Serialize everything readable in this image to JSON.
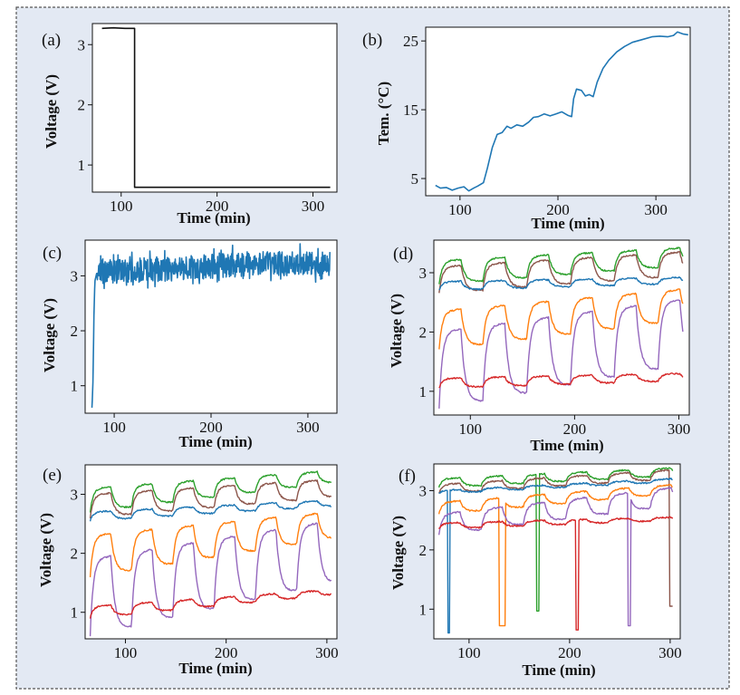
{
  "colors": {
    "background": "#e3e9f3",
    "frame": "#555555",
    "axis": "#111111",
    "black_line": "#111111",
    "blue": "#1f77b4",
    "green": "#2ca02c",
    "brown": "#8c564b",
    "orange": "#ff7f0e",
    "purple": "#9467bd",
    "red": "#d62728"
  },
  "chart_data": [
    {
      "panel_label": "(a)",
      "type": "line",
      "xlabel": "Time (min)",
      "ylabel": "Voltage (V)",
      "xlim": [
        70,
        325
      ],
      "ylim": [
        0.55,
        3.35
      ],
      "xticks": [
        100,
        200,
        300
      ],
      "yticks": [
        1,
        2,
        3
      ],
      "series": [
        {
          "name": "voltage",
          "color": "black_line",
          "points": [
            [
              80,
              3.27
            ],
            [
              92,
              3.28
            ],
            [
              104,
              3.27
            ],
            [
              114,
              3.27
            ],
            [
              114,
              0.63
            ],
            [
              200,
              0.63
            ],
            [
              318,
              0.63
            ]
          ]
        }
      ]
    },
    {
      "panel_label": "(b)",
      "type": "line",
      "xlabel": "Time (min)",
      "ylabel": "Tem. (°C)",
      "xlim": [
        65,
        335
      ],
      "ylim": [
        2.5,
        27
      ],
      "xticks": [
        100,
        200,
        300
      ],
      "yticks": [
        5,
        15,
        25
      ],
      "series": [
        {
          "name": "temperature",
          "color": "blue",
          "points": [
            [
              75,
              4.0
            ],
            [
              80,
              3.6
            ],
            [
              86,
              3.7
            ],
            [
              92,
              3.3
            ],
            [
              98,
              3.6
            ],
            [
              104,
              3.8
            ],
            [
              109,
              3.2
            ],
            [
              114,
              3.6
            ],
            [
              118,
              3.9
            ],
            [
              124,
              4.4
            ],
            [
              128,
              6.5
            ],
            [
              133,
              9.5
            ],
            [
              138,
              11.4
            ],
            [
              143,
              11.7
            ],
            [
              148,
              12.6
            ],
            [
              152,
              12.3
            ],
            [
              158,
              12.8
            ],
            [
              164,
              12.6
            ],
            [
              170,
              13.2
            ],
            [
              175,
              13.9
            ],
            [
              180,
              14.0
            ],
            [
              186,
              14.4
            ],
            [
              192,
              14.1
            ],
            [
              198,
              14.4
            ],
            [
              204,
              14.7
            ],
            [
              210,
              14.2
            ],
            [
              214,
              14.0
            ],
            [
              216,
              16.6
            ],
            [
              219,
              18.0
            ],
            [
              224,
              17.8
            ],
            [
              228,
              17.0
            ],
            [
              232,
              17.2
            ],
            [
              236,
              16.9
            ],
            [
              240,
              19.0
            ],
            [
              246,
              21.0
            ],
            [
              252,
              22.2
            ],
            [
              260,
              23.4
            ],
            [
              268,
              24.2
            ],
            [
              276,
              24.8
            ],
            [
              286,
              25.2
            ],
            [
              296,
              25.6
            ],
            [
              304,
              25.7
            ],
            [
              312,
              25.6
            ],
            [
              318,
              25.8
            ],
            [
              322,
              26.3
            ],
            [
              328,
              26.0
            ],
            [
              333,
              25.9
            ]
          ]
        }
      ]
    },
    {
      "panel_label": "(c)",
      "type": "line",
      "xlabel": "Time (min)",
      "ylabel": "Voltage (V)",
      "xlim": [
        70,
        330
      ],
      "ylim": [
        0.5,
        3.65
      ],
      "xticks": [
        100,
        200,
        300
      ],
      "yticks": [
        1,
        2,
        3
      ],
      "series": [
        {
          "name": "voltage",
          "color": "blue",
          "noise_amplitude": 0.22,
          "points": [
            [
              77,
              0.6
            ],
            [
              78,
              1.0
            ],
            [
              79,
              2.2
            ],
            [
              80,
              2.9
            ],
            [
              82,
              3.05
            ],
            [
              90,
              3.05
            ],
            [
              120,
              3.08
            ],
            [
              160,
              3.1
            ],
            [
              200,
              3.15
            ],
            [
              240,
              3.2
            ],
            [
              280,
              3.2
            ],
            [
              323,
              3.2
            ]
          ]
        }
      ]
    },
    {
      "panel_label": "(d)",
      "type": "line",
      "xlabel": "Time (min)",
      "ylabel": "Voltage (V)",
      "xlim": [
        65,
        310
      ],
      "ylim": [
        0.6,
        3.55
      ],
      "xticks": [
        100,
        200,
        300
      ],
      "yticks": [
        1,
        2,
        3
      ],
      "cycle": {
        "start": 70,
        "end": 304,
        "period": 42,
        "on_fraction": 0.5
      },
      "series": [
        {
          "name": "green",
          "color": "green",
          "base": [
            2.8,
            3.12
          ],
          "peak": [
            3.2,
            3.42
          ]
        },
        {
          "name": "brown",
          "color": "brown",
          "base": [
            2.65,
            2.95
          ],
          "peak": [
            3.1,
            3.35
          ]
        },
        {
          "name": "blue",
          "color": "blue",
          "base": [
            2.7,
            2.82
          ],
          "peak": [
            2.85,
            2.92
          ]
        },
        {
          "name": "orange",
          "color": "orange",
          "base": [
            1.7,
            2.2
          ],
          "peak": [
            2.35,
            2.72
          ]
        },
        {
          "name": "purple",
          "color": "purple",
          "base": [
            0.7,
            1.45
          ],
          "peak": [
            2.0,
            2.55
          ]
        },
        {
          "name": "red",
          "color": "red",
          "base": [
            1.05,
            1.18
          ],
          "peak": [
            1.22,
            1.3
          ]
        }
      ]
    },
    {
      "panel_label": "(e)",
      "type": "line",
      "xlabel": "Time (min)",
      "ylabel": "Voltage (V)",
      "xlim": [
        60,
        310
      ],
      "ylim": [
        0.55,
        3.5
      ],
      "xticks": [
        100,
        200,
        300
      ],
      "yticks": [
        1,
        2,
        3
      ],
      "cycle": {
        "start": 65,
        "end": 305,
        "period": 41,
        "on_fraction": 0.5
      },
      "series": [
        {
          "name": "green",
          "color": "green",
          "base": [
            2.7,
            3.2
          ],
          "peak": [
            3.1,
            3.4
          ]
        },
        {
          "name": "brown",
          "color": "brown",
          "base": [
            2.6,
            2.95
          ],
          "peak": [
            3.0,
            3.25
          ]
        },
        {
          "name": "blue",
          "color": "blue",
          "base": [
            2.55,
            2.8
          ],
          "peak": [
            2.7,
            2.9
          ]
        },
        {
          "name": "orange",
          "color": "orange",
          "base": [
            1.6,
            2.25
          ],
          "peak": [
            2.3,
            2.7
          ]
        },
        {
          "name": "purple",
          "color": "purple",
          "base": [
            0.6,
            1.5
          ],
          "peak": [
            1.9,
            2.55
          ]
        },
        {
          "name": "red",
          "color": "red",
          "base": [
            0.9,
            1.3
          ],
          "peak": [
            1.1,
            1.38
          ]
        }
      ]
    },
    {
      "panel_label": "(f)",
      "type": "line",
      "xlabel": "Time (min)",
      "ylabel": "Voltage (V)",
      "xlim": [
        65,
        310
      ],
      "ylim": [
        0.5,
        3.45
      ],
      "xticks": [
        100,
        200,
        300
      ],
      "yticks": [
        1,
        2,
        3
      ],
      "cycle": {
        "start": 70,
        "end": 303,
        "period": 42,
        "on_fraction": 0.5
      },
      "series": [
        {
          "name": "green",
          "color": "green",
          "base": [
            3.05,
            3.25
          ],
          "peak": [
            3.2,
            3.38
          ],
          "dips": [
            [
              167,
              170,
              0.97
            ]
          ]
        },
        {
          "name": "brown",
          "color": "brown",
          "base": [
            2.95,
            3.2
          ],
          "peak": [
            3.1,
            3.35
          ],
          "dips": [
            [
              299,
              303,
              1.05
            ]
          ]
        },
        {
          "name": "blue",
          "color": "blue",
          "base": [
            2.95,
            3.15
          ],
          "peak": [
            3.0,
            3.2
          ],
          "dips": [
            [
              79,
              81,
              0.6
            ]
          ]
        },
        {
          "name": "orange",
          "color": "orange",
          "base": [
            2.6,
            2.95
          ],
          "peak": [
            2.8,
            3.1
          ],
          "dips": [
            [
              130,
              136,
              0.72
            ]
          ]
        },
        {
          "name": "purple",
          "color": "purple",
          "base": [
            2.25,
            2.75
          ],
          "peak": [
            2.6,
            3.05
          ],
          "dips": [
            [
              258,
              261,
              0.72
            ]
          ]
        },
        {
          "name": "red",
          "color": "red",
          "base": [
            2.35,
            2.5
          ],
          "peak": [
            2.45,
            2.55
          ],
          "dips": [
            [
              206,
              209,
              0.65
            ]
          ]
        }
      ]
    }
  ]
}
